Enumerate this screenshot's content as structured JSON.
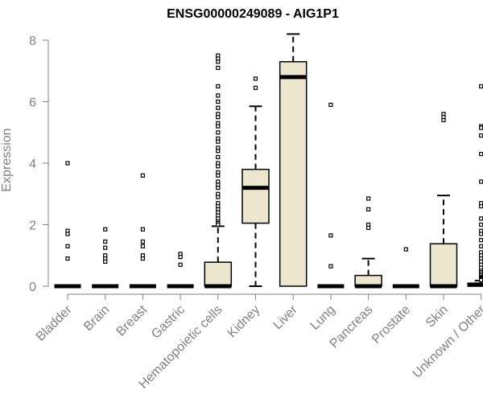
{
  "chart_data": {
    "type": "box",
    "title": "ENSG00000249089 - AIG1P1",
    "ylabel": "Expression",
    "xlabel": "",
    "ylim": [
      0,
      8
    ],
    "yticks": [
      0,
      2,
      4,
      6,
      8
    ],
    "categories": [
      "Bladder",
      "Brain",
      "Breast",
      "Gastric",
      "Hematopoietic cells",
      "Kidney",
      "Liver",
      "Lung",
      "Pancreas",
      "Prostate",
      "Skin",
      "Unknown / Other"
    ],
    "grid": false,
    "box_fill": "#EDE6CE",
    "box_stroke": "#000000",
    "series": [
      {
        "category": "Bladder",
        "q1": 0,
        "median": 0,
        "q3": 0,
        "whisker_low": 0,
        "whisker_high": 0,
        "outliers": [
          4.0,
          1.8,
          1.7,
          1.3,
          0.9
        ]
      },
      {
        "category": "Brain",
        "q1": 0,
        "median": 0,
        "q3": 0,
        "whisker_low": 0,
        "whisker_high": 0,
        "outliers": [
          1.85,
          1.45,
          1.25,
          1.0,
          0.9,
          0.8
        ]
      },
      {
        "category": "Breast",
        "q1": 0,
        "median": 0,
        "q3": 0,
        "whisker_low": 0,
        "whisker_high": 0,
        "outliers": [
          3.6,
          1.85,
          1.45,
          1.3,
          1.0,
          0.9
        ]
      },
      {
        "category": "Gastric",
        "q1": 0,
        "median": 0,
        "q3": 0,
        "whisker_low": 0,
        "whisker_high": 0,
        "outliers": [
          1.05,
          0.95,
          0.7
        ]
      },
      {
        "category": "Hematopoietic cells",
        "q1": 0,
        "median": 0,
        "q3": 0.78,
        "whisker_low": 0,
        "whisker_high": 1.95,
        "outliers": [
          7.5,
          7.4,
          7.3,
          7.1,
          6.5,
          6.2,
          6.0,
          5.8,
          5.6,
          5.5,
          5.3,
          5.2,
          5.0,
          4.8,
          4.7,
          4.5,
          4.4,
          4.2,
          4.0,
          3.9,
          3.7,
          3.6,
          3.4,
          3.3,
          3.2,
          3.0,
          2.9,
          2.7,
          2.6,
          2.5,
          2.4,
          2.3,
          2.2,
          2.1,
          2.05,
          2.0
        ]
      },
      {
        "category": "Kidney",
        "q1": 2.05,
        "median": 3.2,
        "q3": 3.8,
        "whisker_low": 0,
        "whisker_high": 5.85,
        "outliers": [
          6.75,
          6.45
        ]
      },
      {
        "category": "Liver",
        "q1": 0,
        "median": 6.8,
        "q3": 7.3,
        "whisker_low": 0,
        "whisker_high": 8.2,
        "outliers": []
      },
      {
        "category": "Lung",
        "q1": 0,
        "median": 0,
        "q3": 0,
        "whisker_low": 0,
        "whisker_high": 0,
        "outliers": [
          5.9,
          1.65,
          0.65
        ]
      },
      {
        "category": "Pancreas",
        "q1": 0,
        "median": 0,
        "q3": 0.35,
        "whisker_low": 0,
        "whisker_high": 0.9,
        "outliers": [
          2.85,
          2.5,
          2.0,
          1.9
        ]
      },
      {
        "category": "Prostate",
        "q1": 0,
        "median": 0,
        "q3": 0,
        "whisker_low": 0,
        "whisker_high": 0,
        "outliers": [
          1.2
        ]
      },
      {
        "category": "Skin",
        "q1": 0,
        "median": 0,
        "q3": 1.38,
        "whisker_low": 0,
        "whisker_high": 2.95,
        "outliers": [
          5.6,
          5.5,
          5.4
        ]
      },
      {
        "category": "Unknown / Other",
        "q1": 0,
        "median": 0.05,
        "q3": 0.1,
        "whisker_low": 0,
        "whisker_high": 0.18,
        "outliers": [
          6.5,
          5.2,
          5.15,
          4.9,
          4.3,
          3.4,
          2.7,
          2.6,
          2.2,
          2.0,
          1.8,
          1.7,
          1.5,
          1.3,
          1.1,
          1.0,
          0.9,
          0.8,
          0.7,
          0.6,
          0.5,
          0.45,
          0.4,
          0.35,
          0.3,
          0.28,
          0.25,
          0.22,
          0.2
        ]
      }
    ]
  }
}
